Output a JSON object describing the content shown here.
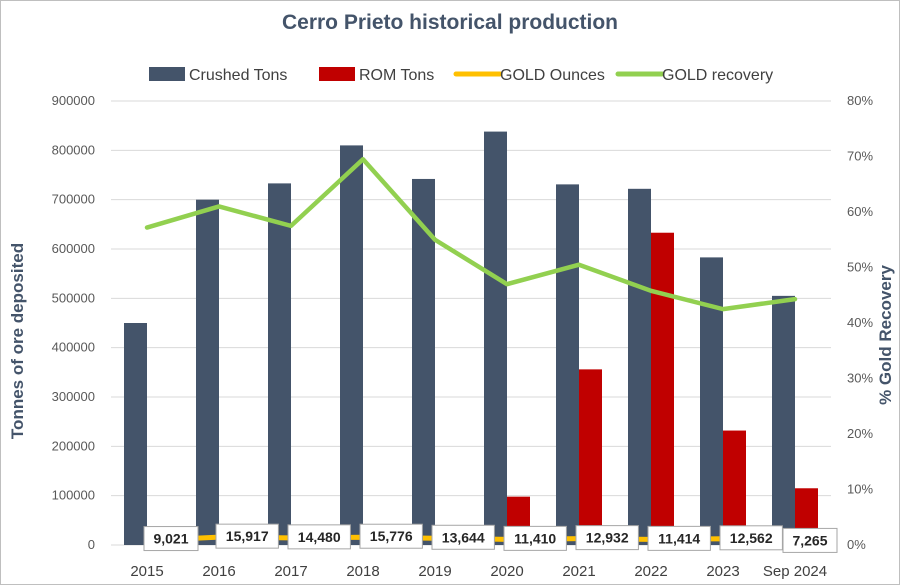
{
  "chart_data": {
    "type": "bar",
    "title": "Cerro Prieto historical production",
    "categories": [
      "2015",
      "2016",
      "2017",
      "2018",
      "2019",
      "2020",
      "2021",
      "2022",
      "2023",
      "Sep 2024"
    ],
    "ylabel": "Tonnes of ore deposited",
    "y2label": "% Gold Recovery",
    "ylim": [
      0,
      900000
    ],
    "y_ticks": [
      "900000",
      "800000",
      "700000",
      "600000",
      "500000",
      "400000",
      "300000",
      "200000",
      "100000",
      "0"
    ],
    "y2lim": [
      0,
      80
    ],
    "y2_ticks": [
      "80%",
      "70%",
      "60%",
      "50%",
      "40%",
      "30%",
      "20%",
      "10%",
      "0%"
    ],
    "legend_position": "top",
    "grid": true,
    "series": [
      {
        "name": "Crushed Tons",
        "type": "bar",
        "color": "#44546a",
        "axis": "left",
        "values": [
          450000,
          700000,
          733000,
          810000,
          742000,
          838000,
          731000,
          722000,
          583000,
          505000
        ]
      },
      {
        "name": "ROM Tons",
        "type": "bar",
        "color": "#c00000",
        "axis": "left",
        "values": [
          null,
          null,
          null,
          null,
          null,
          98000,
          356000,
          633000,
          232000,
          115000
        ]
      },
      {
        "name": "GOLD Ounces",
        "type": "line",
        "color": "#ffc000",
        "axis": "left",
        "values": [
          9021,
          15917,
          14480,
          15776,
          13644,
          11410,
          12932,
          11414,
          12562,
          7265
        ],
        "labels": [
          "9,021",
          "15,917",
          "14,480",
          "15,776",
          "13,644",
          "11,410",
          "12,932",
          "11,414",
          "12,562",
          "7,265"
        ]
      },
      {
        "name": "GOLD recovery",
        "type": "line",
        "color": "#92d050",
        "axis": "right",
        "values": [
          57.2,
          61.0,
          57.5,
          69.5,
          55.0,
          47.0,
          50.5,
          45.8,
          42.5,
          44.3
        ]
      }
    ]
  }
}
